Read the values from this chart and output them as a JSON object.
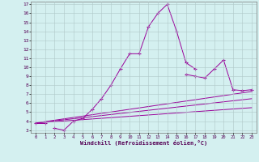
{
  "xlabel": "Windchill (Refroidissement éolien,°C)",
  "background_color": "#d4f0f0",
  "line_color": "#990099",
  "grid_color": "#b0c8c8",
  "xmin": 0,
  "xmax": 23,
  "ymin": 3,
  "ymax": 17,
  "xtick_vals": [
    0,
    1,
    2,
    3,
    4,
    5,
    6,
    7,
    8,
    9,
    10,
    11,
    12,
    13,
    14,
    15,
    16,
    17,
    18,
    19,
    20,
    21,
    22,
    23
  ],
  "xtick_labels": [
    "0",
    "1",
    "2",
    "3",
    "4",
    "5",
    "6",
    "7",
    "8",
    "9",
    "10",
    "11",
    "12",
    "13",
    "14",
    "15",
    "16",
    "17",
    "18",
    "19",
    "20",
    "21",
    "22",
    "23"
  ],
  "ytick_vals": [
    3,
    4,
    5,
    6,
    7,
    8,
    9,
    10,
    11,
    12,
    13,
    14,
    15,
    16,
    17
  ],
  "ytick_labels": [
    "3",
    "4",
    "5",
    "6",
    "7",
    "8",
    "9",
    "10",
    "11",
    "12",
    "13",
    "14",
    "15",
    "16",
    "17"
  ],
  "lines": [
    {
      "x": [
        0,
        1
      ],
      "y": [
        3.8,
        3.8
      ],
      "marker": true
    },
    {
      "x": [
        2,
        3,
        4,
        5,
        6,
        7,
        8,
        9,
        10,
        11,
        12,
        13,
        14,
        15,
        16,
        17
      ],
      "y": [
        3.2,
        3.0,
        4.0,
        4.3,
        5.3,
        6.5,
        8.0,
        9.8,
        11.5,
        11.5,
        14.5,
        16.0,
        17.0,
        14.0,
        10.5,
        9.8
      ],
      "marker": true
    },
    {
      "x": [
        16,
        17,
        18,
        19,
        20,
        21,
        22,
        23
      ],
      "y": [
        9.2,
        9.0,
        8.8,
        9.8,
        10.8,
        7.5,
        7.4,
        7.5
      ],
      "marker": true
    },
    {
      "x": [
        0,
        23
      ],
      "y": [
        3.8,
        7.3
      ],
      "marker": false
    },
    {
      "x": [
        0,
        23
      ],
      "y": [
        3.8,
        6.5
      ],
      "marker": false
    },
    {
      "x": [
        0,
        23
      ],
      "y": [
        3.8,
        5.5
      ],
      "marker": false
    }
  ]
}
